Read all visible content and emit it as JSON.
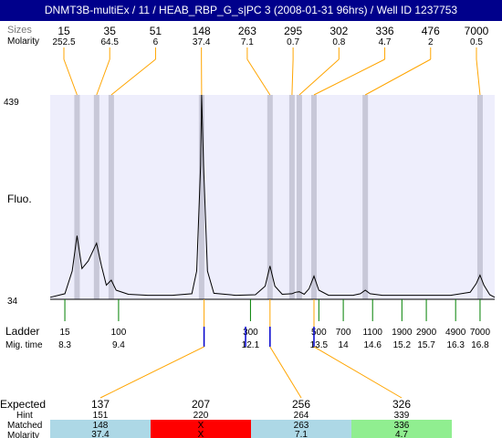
{
  "header": {
    "title": "DNMT3B-multiEx / 11  / HEAB_RBP_G_s|PC 3 (2008-01-31 96hrs) / Well ID 1237753"
  },
  "labels": {
    "top_row1": "Sizes",
    "top_row2": "Molarity",
    "fluo": "Fluo.",
    "ladder": "Ladder",
    "mig_time": "Mig. time",
    "expected": "Expected",
    "hint": "Hint",
    "matched": "Matched",
    "molarity": "Molarity",
    "ymax": "439",
    "ymin": "34"
  },
  "colors": {
    "title_bg": "#00008b",
    "plot_bg": "#eeeefc",
    "band": "#c8c8d8",
    "peak_connector": "#ffa500",
    "ladder_tick": "#008000",
    "marker_tick": "#0000cd",
    "expected_highlight": "#ff0000",
    "table_blue": "#add8e6",
    "table_red": "#ff0000",
    "table_green": "#90ee90"
  },
  "chart_data": {
    "type": "line",
    "ylim": [
      34,
      439
    ],
    "detected_peaks": [
      {
        "size": "15",
        "molarity": "252.5",
        "time": 8.55
      },
      {
        "size": "35",
        "molarity": "64.5",
        "time": 8.95
      },
      {
        "size": "51",
        "molarity": "6",
        "time": 9.25
      },
      {
        "size": "148",
        "molarity": "37.4",
        "time": 11.1
      },
      {
        "size": "263",
        "molarity": "7.1",
        "time": 12.5
      },
      {
        "size": "295",
        "molarity": "0.7",
        "time": 12.95
      },
      {
        "size": "302",
        "molarity": "0.8",
        "time": 13.1
      },
      {
        "size": "336",
        "molarity": "4.7",
        "time": 13.4
      },
      {
        "size": "476",
        "molarity": "2",
        "time": 14.45
      },
      {
        "size": "7000",
        "molarity": "0.5",
        "time": 16.8
      }
    ],
    "ladder": [
      {
        "size": "15",
        "time": "8.3"
      },
      {
        "size": "100",
        "time": "9.4"
      },
      {
        "size": "300",
        "time": "12.1"
      },
      {
        "size": "500",
        "time": "13.5"
      },
      {
        "size": "700",
        "time": "14"
      },
      {
        "size": "1100",
        "time": "14.6"
      },
      {
        "size": "1900",
        "time": "15.2"
      },
      {
        "size": "2900",
        "time": "15.7"
      },
      {
        "size": "4900",
        "time": "16.3"
      },
      {
        "size": "7000",
        "time": "16.8"
      }
    ],
    "trace": [
      [
        8.0,
        38
      ],
      [
        8.3,
        45
      ],
      [
        8.45,
        90
      ],
      [
        8.55,
        160
      ],
      [
        8.65,
        95
      ],
      [
        8.78,
        110
      ],
      [
        8.95,
        145
      ],
      [
        9.05,
        100
      ],
      [
        9.15,
        62
      ],
      [
        9.25,
        72
      ],
      [
        9.35,
        52
      ],
      [
        9.6,
        44
      ],
      [
        10.0,
        42
      ],
      [
        10.5,
        42
      ],
      [
        10.9,
        45
      ],
      [
        11.0,
        90
      ],
      [
        11.08,
        300
      ],
      [
        11.1,
        439
      ],
      [
        11.14,
        300
      ],
      [
        11.22,
        90
      ],
      [
        11.35,
        46
      ],
      [
        11.8,
        42
      ],
      [
        12.2,
        43
      ],
      [
        12.4,
        60
      ],
      [
        12.5,
        100
      ],
      [
        12.6,
        60
      ],
      [
        12.75,
        44
      ],
      [
        12.95,
        45
      ],
      [
        13.02,
        48
      ],
      [
        13.1,
        49
      ],
      [
        13.2,
        44
      ],
      [
        13.3,
        55
      ],
      [
        13.4,
        80
      ],
      [
        13.5,
        52
      ],
      [
        13.7,
        42
      ],
      [
        14.2,
        42
      ],
      [
        14.35,
        45
      ],
      [
        14.45,
        52
      ],
      [
        14.55,
        45
      ],
      [
        14.8,
        42
      ],
      [
        15.5,
        42
      ],
      [
        16.2,
        42
      ],
      [
        16.6,
        48
      ],
      [
        16.72,
        65
      ],
      [
        16.8,
        82
      ],
      [
        16.88,
        62
      ],
      [
        17.0,
        43
      ],
      [
        17.1,
        38
      ]
    ],
    "expected_fragments": [
      {
        "expected": "137",
        "hint": "151",
        "matched": "148",
        "molarity": "37.4",
        "status": "match",
        "marker_time": 11.15
      },
      {
        "expected": "207",
        "hint": "220",
        "matched": "X",
        "molarity": "X",
        "status": "missing",
        "marker_time": 12.0
      },
      {
        "expected": "256",
        "hint": "264",
        "matched": "263",
        "molarity": "7.1",
        "status": "match",
        "marker_time": 12.5
      },
      {
        "expected": "326",
        "hint": "339",
        "matched": "336",
        "molarity": "4.7",
        "status": "good",
        "marker_time": 13.4
      }
    ],
    "time_range": [
      8.0,
      17.1
    ]
  }
}
